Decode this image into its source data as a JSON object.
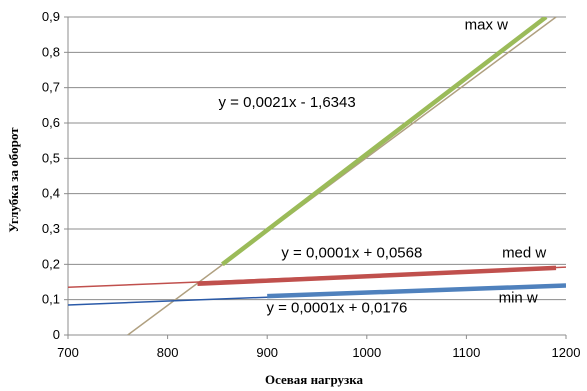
{
  "chart_data": {
    "type": "line",
    "title": "",
    "xlabel": "Осевая нагрузка",
    "ylabel": "Углубка за оборот",
    "xlim": [
      700,
      1200
    ],
    "ylim": [
      0,
      0.9
    ],
    "xticks": [
      700,
      800,
      900,
      1000,
      1100,
      1200
    ],
    "xtick_labels": [
      "700",
      "800",
      "900",
      "1000",
      "1100",
      "1200"
    ],
    "yticks": [
      0,
      0.1,
      0.2,
      0.3,
      0.4,
      0.5,
      0.6,
      0.7,
      0.8,
      0.9
    ],
    "ytick_labels": [
      "0",
      "0,1",
      "0,2",
      "0,3",
      "0,4",
      "0,5",
      "0,6",
      "0,7",
      "0,8",
      "0,9"
    ],
    "grid": "horizontal",
    "legend": "none",
    "series": [
      {
        "name": "max w",
        "color": "#9bbb59",
        "x": [
          855,
          1180
        ],
        "y": [
          0.2,
          0.9
        ],
        "trendline": {
          "equation": "y = 0,0021x - 1,6343",
          "color": "#b0a080",
          "x": [
            760,
            1190
          ],
          "y": [
            0,
            0.9
          ]
        }
      },
      {
        "name": "med w",
        "color": "#c0504d",
        "x": [
          830,
          1190
        ],
        "y": [
          0.145,
          0.19
        ],
        "trendline": {
          "equation": "y = 0,0001x + 0,0568",
          "color": "#c0504d",
          "x": [
            700,
            1200
          ],
          "y": [
            0.135,
            0.192
          ]
        }
      },
      {
        "name": "min w",
        "color": "#4f81bd",
        "x": [
          900,
          1200
        ],
        "y": [
          0.11,
          0.14
        ],
        "trendline": {
          "equation": "y = 0,0001x + 0,0176",
          "color": "#2a5aa8",
          "x": [
            700,
            1200
          ],
          "y": [
            0.085,
            0.14
          ]
        }
      }
    ],
    "annotations": [
      {
        "text": "y = 0,0021x - 1,6343",
        "x": 920,
        "y": 0.645
      },
      {
        "text": "y = 0,0001x + 0,0568",
        "x": 985,
        "y": 0.22
      },
      {
        "text": "y = 0,0001x + 0,0176",
        "x": 970,
        "y": 0.063
      }
    ],
    "series_labels": [
      {
        "text": "max w",
        "x": 1120,
        "y": 0.865
      },
      {
        "text": "med w",
        "x": 1158,
        "y": 0.22
      },
      {
        "text": "min w",
        "x": 1152,
        "y": 0.092
      }
    ]
  }
}
